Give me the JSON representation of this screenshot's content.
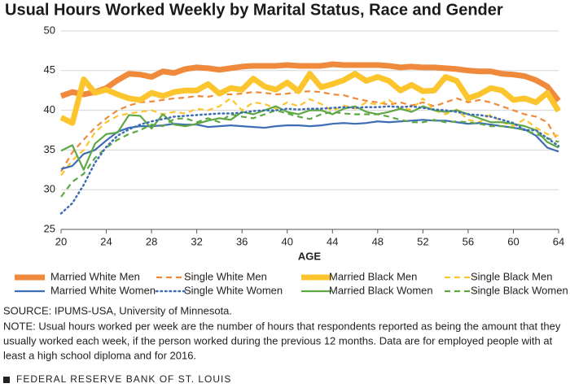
{
  "chart_data": {
    "type": "line",
    "title": "Usual Hours Worked Weekly by Marital Status, Race and Gender",
    "x_label": "AGE",
    "x": [
      20,
      21,
      22,
      23,
      24,
      25,
      26,
      27,
      28,
      29,
      30,
      31,
      32,
      33,
      34,
      35,
      36,
      37,
      38,
      39,
      40,
      41,
      42,
      43,
      44,
      45,
      46,
      47,
      48,
      49,
      50,
      51,
      52,
      53,
      54,
      55,
      56,
      57,
      58,
      59,
      60,
      61,
      62,
      63,
      64
    ],
    "xlim": [
      20,
      64
    ],
    "xticks": [
      20,
      24,
      28,
      32,
      36,
      40,
      44,
      48,
      52,
      56,
      60,
      64
    ],
    "ylim": [
      25,
      50
    ],
    "yticks": [
      25,
      30,
      35,
      40,
      45,
      50
    ],
    "grid": true,
    "series": [
      {
        "name": "Married White Men",
        "color": "#ef8a3c",
        "style": "solid",
        "width": 7,
        "values": [
          41.8,
          42.3,
          42,
          42.3,
          42.8,
          43.8,
          44.6,
          44.5,
          44.2,
          44.9,
          44.7,
          45.2,
          45.4,
          45.3,
          45.1,
          45.3,
          45.5,
          45.6,
          45.6,
          45.6,
          45.7,
          45.6,
          45.6,
          45.6,
          45.8,
          45.7,
          45.7,
          45.7,
          45.7,
          45.6,
          45.4,
          45.5,
          45.4,
          45.4,
          45.3,
          45.2,
          45,
          44.9,
          44.9,
          44.6,
          44.5,
          44.3,
          43.8,
          43,
          41.2
        ]
      },
      {
        "name": "Single White Men",
        "color": "#ef8a3c",
        "style": "dashed",
        "width": 2.2,
        "values": [
          32.3,
          34.7,
          36.3,
          37.8,
          39,
          40,
          40.6,
          41,
          41.1,
          41.3,
          41.5,
          41.6,
          41.8,
          41.7,
          42,
          42,
          42.1,
          42.3,
          42.2,
          42,
          42.1,
          42.3,
          42.4,
          42.3,
          42,
          41.9,
          41.5,
          41.2,
          41,
          40.7,
          41,
          40.6,
          41,
          40.5,
          41,
          41.5,
          41,
          41.3,
          41,
          40.5,
          40,
          39.5,
          39.2,
          38.5,
          36
        ]
      },
      {
        "name": "Married Black Men",
        "color": "#fcc52e",
        "style": "solid",
        "width": 7,
        "values": [
          39.1,
          38.4,
          43.9,
          42.2,
          42.6,
          42,
          41.5,
          41.3,
          42.2,
          41.8,
          42.3,
          42.5,
          42.5,
          43.3,
          42.1,
          42.8,
          42.6,
          44,
          43,
          42.6,
          43.5,
          42.4,
          44.6,
          42.9,
          43.3,
          43.8,
          44.6,
          43.7,
          44.2,
          43.7,
          42.5,
          43.2,
          42.4,
          42.5,
          44.2,
          43.7,
          41.5,
          42,
          42.8,
          42.5,
          41.3,
          41.5,
          41,
          42.2,
          39.9
        ]
      },
      {
        "name": "Single Black Men",
        "color": "#fcc52e",
        "style": "dashed",
        "width": 2.2,
        "values": [
          31.8,
          33.7,
          35,
          37.2,
          38.5,
          39.3,
          39.6,
          39.8,
          40,
          39.5,
          39.8,
          39.6,
          40.2,
          40,
          40.5,
          41.5,
          40,
          41,
          40.8,
          40.2,
          41,
          40.5,
          41.4,
          40.8,
          39.9,
          40.6,
          40.2,
          41,
          40.7,
          41.3,
          40.2,
          40.1,
          41.5,
          40,
          39.5,
          40.1,
          38.8,
          38.5,
          39.5,
          38.5,
          38,
          38.9,
          37.8,
          37,
          36.8
        ]
      },
      {
        "name": "Married White Women",
        "color": "#3d6db4",
        "style": "solid",
        "width": 2.2,
        "values": [
          32.6,
          33,
          34.5,
          35,
          36.2,
          37.3,
          37.8,
          38,
          38,
          38.1,
          38.3,
          38.2,
          38.2,
          37.9,
          38,
          38.1,
          38,
          37.9,
          37.8,
          38,
          38.1,
          38.1,
          38,
          38.1,
          38.3,
          38.4,
          38.3,
          38.4,
          38.6,
          38.5,
          38.6,
          38.7,
          38.8,
          38.7,
          38.7,
          38.5,
          38.3,
          38.4,
          38.2,
          38,
          37.8,
          37.6,
          36.8,
          35.3,
          34.8
        ]
      },
      {
        "name": "Single White Women",
        "color": "#3d6db4",
        "style": "dotted",
        "width": 2.5,
        "values": [
          27,
          28.3,
          30.6,
          33.4,
          35.4,
          36.8,
          37.6,
          38.2,
          38.6,
          38.9,
          39.2,
          39.3,
          39.4,
          39.5,
          39.6,
          39.6,
          39.7,
          39.9,
          40,
          40,
          40.2,
          40.1,
          40.2,
          40.2,
          40.3,
          40.4,
          40.3,
          40.4,
          40.4,
          40.5,
          40.4,
          40.5,
          40.3,
          40.1,
          40,
          39.8,
          39.5,
          39.4,
          39.2,
          38.8,
          38.4,
          37.5,
          37.5,
          36.5,
          35.5
        ]
      },
      {
        "name": "Married Black Women",
        "color": "#5ea844",
        "style": "solid",
        "width": 2.2,
        "values": [
          34.9,
          35.6,
          32.5,
          35.8,
          37,
          37.2,
          39.4,
          39.3,
          37.7,
          39.5,
          38.2,
          38,
          38.3,
          38.7,
          39,
          38.8,
          39.8,
          39.5,
          40,
          40.5,
          39.8,
          39.5,
          40,
          40,
          39.5,
          40.2,
          40.5,
          39.8,
          39.5,
          39.8,
          40.2,
          39.8,
          40.5,
          40,
          39.8,
          40,
          39.5,
          39,
          38.5,
          38.5,
          38.3,
          38,
          37.5,
          36,
          35.3
        ]
      },
      {
        "name": "Single Black Women",
        "color": "#5ea844",
        "style": "dashed",
        "width": 2.2,
        "values": [
          29.1,
          31,
          32,
          34,
          35.3,
          36.3,
          37,
          37.5,
          38.2,
          38,
          38.9,
          39,
          38.5,
          39,
          38.5,
          39.5,
          39.2,
          39,
          39.5,
          40,
          39.6,
          39.2,
          38.9,
          39.5,
          39.8,
          39.6,
          39.5,
          39.5,
          39.5,
          39.2,
          38.8,
          38.5,
          38.5,
          38.8,
          38.5,
          38.6,
          38.5,
          38.3,
          38,
          38,
          37.8,
          37.5,
          37,
          36.5,
          36
        ]
      }
    ],
    "source": "SOURCE: IPUMS-USA, University of Minnesota.",
    "note": [
      "NOTE:  Usual hours worked per week are the number of hours that respondents reported as being the amount that they",
      "usually worked each week, if the person worked during the previous 12 months. Data are for employed people with at",
      "least a high school diploma and for 2016."
    ],
    "footer": "FEDERAL RESERVE BANK OF ST. LOUIS"
  }
}
